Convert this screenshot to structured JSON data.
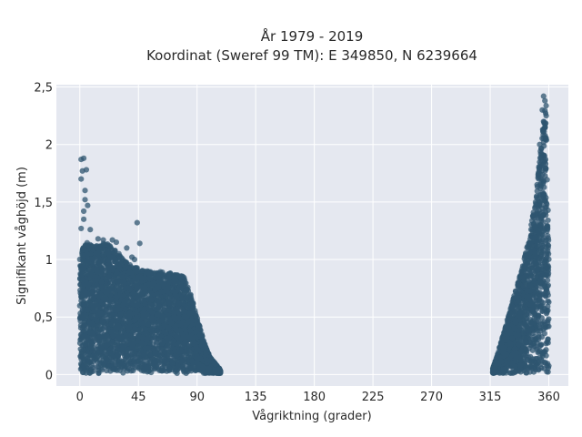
{
  "chart_data": {
    "type": "scatter",
    "title": "År 1979 - 2019",
    "subtitle": "Koordinat (Sweref 99 TM): E 349850, N 6239664",
    "xlabel": "Vågriktning (grader)",
    "ylabel": "Signifikant våghöjd (m)",
    "xlim": [
      -18,
      375
    ],
    "ylim": [
      -0.1,
      2.52
    ],
    "xticks": [
      0,
      45,
      90,
      135,
      180,
      225,
      270,
      315,
      360
    ],
    "xtick_labels": [
      "0",
      "45",
      "90",
      "135",
      "180",
      "225",
      "270",
      "315",
      "360"
    ],
    "yticks": [
      0,
      0.5,
      1,
      1.5,
      2,
      2.5
    ],
    "ytick_labels": [
      "0",
      "0,5",
      "1",
      "1,5",
      "2",
      "2,5"
    ],
    "grid": true,
    "legend": "none",
    "marker_color": "#2f5670",
    "background_color": "#e5e8f0",
    "envelope_clusters": [
      {
        "x": [
          0,
          5,
          10,
          15,
          20,
          30,
          40,
          50,
          60,
          70,
          75,
          80,
          85,
          90,
          95,
          100,
          105,
          108
        ],
        "upper": [
          1.05,
          1.15,
          1.12,
          1.12,
          1.15,
          1.05,
          0.95,
          0.9,
          0.9,
          0.88,
          0.87,
          0.85,
          0.7,
          0.5,
          0.3,
          0.15,
          0.08,
          0.04
        ]
      },
      {
        "x": [
          317,
          320,
          325,
          330,
          335,
          340,
          345,
          350,
          355,
          358,
          360
        ],
        "upper": [
          0.05,
          0.15,
          0.35,
          0.55,
          0.75,
          0.95,
          1.2,
          1.55,
          2.1,
          2.4,
          1.1
        ]
      }
    ],
    "outliers": [
      [
        1,
        1.87
      ],
      [
        3,
        1.88
      ],
      [
        1,
        1.7
      ],
      [
        2,
        1.77
      ],
      [
        5,
        1.78
      ],
      [
        4,
        1.6
      ],
      [
        4,
        1.52
      ],
      [
        3,
        1.42
      ],
      [
        6,
        1.47
      ],
      [
        3,
        1.35
      ],
      [
        1,
        1.27
      ],
      [
        8,
        1.26
      ],
      [
        14,
        1.18
      ],
      [
        18,
        1.17
      ],
      [
        25,
        1.17
      ],
      [
        28,
        1.15
      ],
      [
        44,
        1.32
      ],
      [
        46,
        1.14
      ],
      [
        36,
        1.1
      ],
      [
        40,
        1.02
      ],
      [
        42,
        1.0
      ],
      [
        30,
        1.05
      ],
      [
        20,
        1.08
      ],
      [
        356,
        2.42
      ],
      [
        357,
        2.38
      ],
      [
        355,
        2.3
      ],
      [
        356,
        2.2
      ],
      [
        357,
        2.15
      ],
      [
        358,
        2.25
      ],
      [
        353,
        2.0
      ],
      [
        354,
        1.88
      ],
      [
        352,
        1.75
      ],
      [
        351,
        1.65
      ]
    ]
  }
}
